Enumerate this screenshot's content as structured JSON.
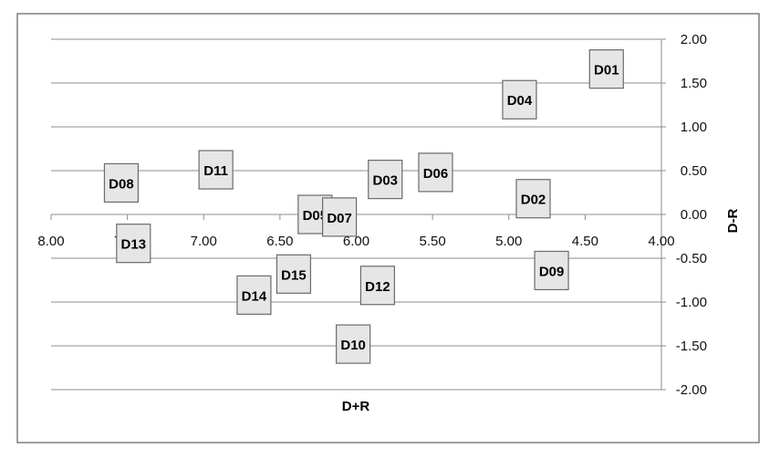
{
  "chart_data": {
    "type": "scatter",
    "xlabel": "D+R",
    "ylabel": "D-R",
    "xlim": [
      8.0,
      4.0
    ],
    "ylim": [
      -2.0,
      2.0
    ],
    "x_reversed": true,
    "grid": "horizontal",
    "xticks": [
      "8.00",
      "7.50",
      "7.00",
      "6.50",
      "6.00",
      "5.50",
      "5.00",
      "4.50",
      "4.00"
    ],
    "yticks": [
      "2.00",
      "1.50",
      "1.00",
      "0.50",
      "0.00",
      "-0.50",
      "-1.00",
      "-1.50",
      "-2.00"
    ],
    "points": [
      {
        "label": "D01",
        "x": 4.36,
        "y": 1.66
      },
      {
        "label": "D02",
        "x": 4.84,
        "y": 0.18
      },
      {
        "label": "D03",
        "x": 5.81,
        "y": 0.4
      },
      {
        "label": "D04",
        "x": 4.93,
        "y": 1.31
      },
      {
        "label": "D05",
        "x": 6.27,
        "y": 0.0
      },
      {
        "label": "D06",
        "x": 5.48,
        "y": 0.48
      },
      {
        "label": "D07",
        "x": 6.11,
        "y": -0.03
      },
      {
        "label": "D08",
        "x": 7.54,
        "y": 0.36
      },
      {
        "label": "D09",
        "x": 4.72,
        "y": -0.64
      },
      {
        "label": "D10",
        "x": 6.02,
        "y": -1.48
      },
      {
        "label": "D11",
        "x": 6.92,
        "y": 0.51
      },
      {
        "label": "D12",
        "x": 5.86,
        "y": -0.81
      },
      {
        "label": "D13",
        "x": 7.46,
        "y": -0.33
      },
      {
        "label": "D14",
        "x": 6.67,
        "y": -0.92
      },
      {
        "label": "D15",
        "x": 6.41,
        "y": -0.68
      }
    ]
  },
  "colors": {
    "marker_fill": "#e6e6e6",
    "marker_stroke": "#6b6b6b",
    "grid": "#8c8c8c",
    "frame": "#5f5f5f"
  }
}
